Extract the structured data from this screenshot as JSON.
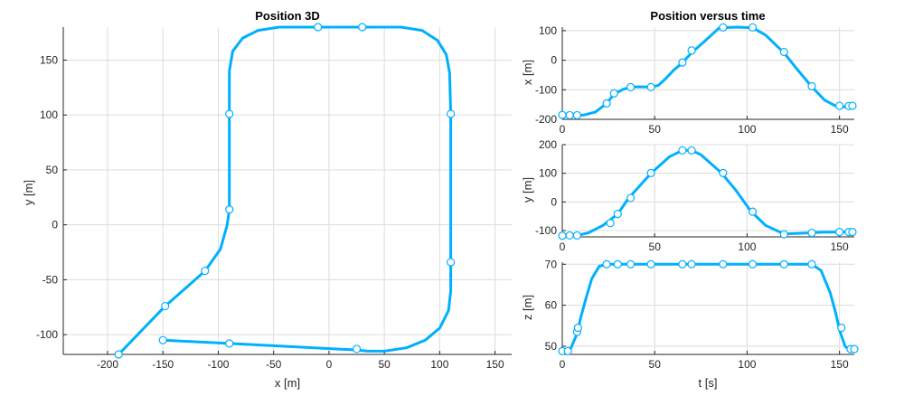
{
  "figure": {
    "line_color": "#00b0ff",
    "marker_color": "#00b0ff",
    "marker_fill": "#ffffff",
    "axes_color": "#262626",
    "grid_color": "#dcdcdc"
  },
  "chart_data": [
    {
      "id": "pos3d",
      "type": "line",
      "title": "Position 3D",
      "xlabel": "x [m]",
      "ylabel": "y [m]",
      "xlim": [
        -240,
        165
      ],
      "ylim": [
        -118,
        180
      ],
      "xticks": [
        -200,
        -150,
        -100,
        -50,
        0,
        50,
        100,
        150
      ],
      "yticks": [
        -100,
        -50,
        0,
        50,
        100,
        150
      ],
      "grid": true,
      "path": [
        [
          -190,
          -118
        ],
        [
          -148,
          -74
        ],
        [
          -112,
          -42
        ],
        [
          -98,
          -22
        ],
        [
          -92,
          0
        ],
        [
          -90,
          14
        ],
        [
          -90,
          30
        ],
        [
          -90,
          100
        ],
        [
          -90,
          140
        ],
        [
          -87,
          158
        ],
        [
          -78,
          170
        ],
        [
          -64,
          177
        ],
        [
          -45,
          180
        ],
        [
          -10,
          180
        ],
        [
          30,
          180
        ],
        [
          65,
          180
        ],
        [
          84,
          177
        ],
        [
          98,
          168
        ],
        [
          106,
          155
        ],
        [
          109,
          138
        ],
        [
          110,
          100
        ],
        [
          110,
          50
        ],
        [
          110,
          0
        ],
        [
          110,
          -35
        ],
        [
          110,
          -60
        ],
        [
          108,
          -78
        ],
        [
          100,
          -94
        ],
        [
          87,
          -105
        ],
        [
          70,
          -112
        ],
        [
          50,
          -115
        ],
        [
          35,
          -115
        ],
        [
          25,
          -114
        ],
        [
          -90,
          -108
        ],
        [
          -150,
          -105
        ]
      ],
      "waypoints": [
        [
          -190,
          -118
        ],
        [
          -148,
          -74
        ],
        [
          -112,
          -42
        ],
        [
          -90,
          14
        ],
        [
          -90,
          101
        ],
        [
          -10,
          180
        ],
        [
          30,
          180
        ],
        [
          110,
          101
        ],
        [
          110,
          -34
        ],
        [
          25,
          -113
        ],
        [
          -90,
          -108
        ],
        [
          -150,
          -105
        ]
      ]
    },
    {
      "id": "x_t",
      "type": "line",
      "title": "Position versus time",
      "xlabel": "",
      "ylabel": "x [m]",
      "xlim": [
        0,
        158
      ],
      "ylim": [
        -200,
        112
      ],
      "xticks": [
        0,
        50,
        100,
        150
      ],
      "yticks": [
        -200,
        -100,
        0,
        100
      ],
      "ytick_labels": [
        "-200",
        "-100",
        "0",
        "100"
      ],
      "grid": true,
      "path": [
        [
          0,
          -185
        ],
        [
          4,
          -188
        ],
        [
          8,
          -187
        ],
        [
          12,
          -185
        ],
        [
          18,
          -175
        ],
        [
          24,
          -146
        ],
        [
          28,
          -115
        ],
        [
          33,
          -98
        ],
        [
          37,
          -91
        ],
        [
          42,
          -90
        ],
        [
          48,
          -91
        ],
        [
          52,
          -85
        ],
        [
          56,
          -62
        ],
        [
          60,
          -35
        ],
        [
          65,
          -8
        ],
        [
          70,
          25
        ],
        [
          78,
          70
        ],
        [
          85,
          110
        ],
        [
          95,
          112
        ],
        [
          103,
          110
        ],
        [
          110,
          85
        ],
        [
          120,
          25
        ],
        [
          127,
          -30
        ],
        [
          135,
          -90
        ],
        [
          142,
          -135
        ],
        [
          148,
          -155
        ],
        [
          152,
          -158
        ],
        [
          158,
          -155
        ]
      ],
      "waypoints": [
        [
          0,
          -185
        ],
        [
          4,
          -186
        ],
        [
          8,
          -186
        ],
        [
          24,
          -146
        ],
        [
          28,
          -112
        ],
        [
          37,
          -91
        ],
        [
          48,
          -91
        ],
        [
          65,
          -8
        ],
        [
          70,
          33
        ],
        [
          87,
          111
        ],
        [
          103,
          111
        ],
        [
          120,
          28
        ],
        [
          135,
          -88
        ],
        [
          150,
          -154
        ],
        [
          155,
          -155
        ],
        [
          157,
          -154
        ]
      ]
    },
    {
      "id": "y_t",
      "type": "line",
      "title": "",
      "xlabel": "",
      "ylabel": "y [m]",
      "xlim": [
        0,
        158
      ],
      "ylim": [
        -122,
        200
      ],
      "xticks": [
        0,
        50,
        100,
        150
      ],
      "yticks": [
        -100,
        0,
        100,
        200
      ],
      "ytick_labels": [
        "-100",
        "0",
        "100",
        "200"
      ],
      "grid": true,
      "path": [
        [
          0,
          -118
        ],
        [
          4,
          -117
        ],
        [
          8,
          -117
        ],
        [
          14,
          -108
        ],
        [
          22,
          -82
        ],
        [
          30,
          -42
        ],
        [
          36,
          14
        ],
        [
          48,
          100
        ],
        [
          58,
          158
        ],
        [
          65,
          180
        ],
        [
          70,
          180
        ],
        [
          75,
          165
        ],
        [
          86,
          102
        ],
        [
          94,
          40
        ],
        [
          102,
          -32
        ],
        [
          110,
          -82
        ],
        [
          120,
          -112
        ],
        [
          130,
          -109
        ],
        [
          140,
          -106
        ],
        [
          150,
          -105
        ],
        [
          158,
          -105
        ]
      ],
      "waypoints": [
        [
          0,
          -118
        ],
        [
          4,
          -117
        ],
        [
          8,
          -117
        ],
        [
          26,
          -74
        ],
        [
          30,
          -42
        ],
        [
          37,
          14
        ],
        [
          48,
          101
        ],
        [
          65,
          180
        ],
        [
          70,
          180
        ],
        [
          87,
          101
        ],
        [
          103,
          -34
        ],
        [
          120,
          -113
        ],
        [
          135,
          -108
        ],
        [
          150,
          -105
        ],
        [
          155,
          -105
        ],
        [
          157,
          -105
        ]
      ]
    },
    {
      "id": "z_t",
      "type": "line",
      "title": "",
      "xlabel": "t [s]",
      "ylabel": "z [m]",
      "xlim": [
        0,
        158
      ],
      "ylim": [
        48,
        70.5
      ],
      "xticks": [
        0,
        50,
        100,
        150
      ],
      "yticks": [
        50,
        60,
        70
      ],
      "ytick_labels": [
        "50",
        "60",
        "70"
      ],
      "grid": true,
      "path": [
        [
          0,
          48.8
        ],
        [
          4,
          48.8
        ],
        [
          6,
          51
        ],
        [
          8,
          53
        ],
        [
          10,
          57
        ],
        [
          13,
          62
        ],
        [
          16,
          66.5
        ],
        [
          20,
          69.5
        ],
        [
          24,
          70
        ],
        [
          135,
          70
        ],
        [
          140,
          68.5
        ],
        [
          145,
          63
        ],
        [
          148,
          58
        ],
        [
          150,
          54
        ],
        [
          153,
          50
        ],
        [
          156,
          48.8
        ],
        [
          158,
          48.8
        ]
      ],
      "waypoints": [
        [
          0,
          48.8
        ],
        [
          3,
          48.8
        ],
        [
          8,
          53.5
        ],
        [
          8.5,
          54.5
        ],
        [
          24,
          70
        ],
        [
          30,
          70
        ],
        [
          37,
          70
        ],
        [
          48,
          70
        ],
        [
          65,
          70
        ],
        [
          70,
          70
        ],
        [
          87,
          70
        ],
        [
          103,
          70
        ],
        [
          120,
          70
        ],
        [
          135,
          70
        ],
        [
          151,
          54.5
        ],
        [
          156,
          49.3
        ],
        [
          158,
          49.3
        ]
      ]
    }
  ]
}
